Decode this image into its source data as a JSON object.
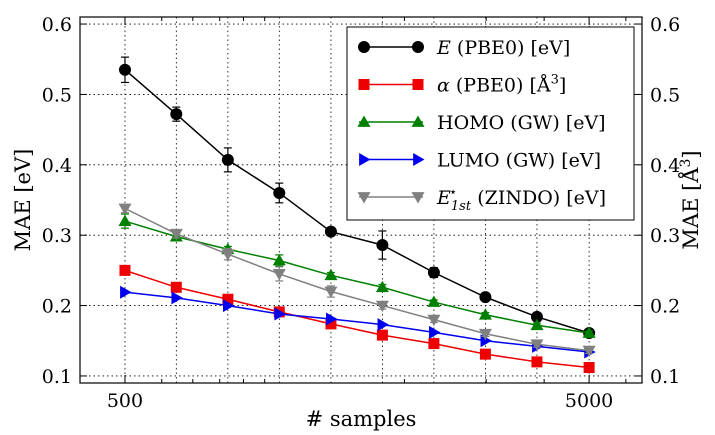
{
  "chart_data": {
    "type": "line",
    "xlabel": "# samples",
    "ylabel_left": "MAE [eV]",
    "ylabel_right": "MAE [Å³]",
    "x_scale": "log",
    "xlim": [
      400,
      6500
    ],
    "ylim": [
      0.09,
      0.61
    ],
    "x_ticks": [
      500,
      5000
    ],
    "x_tick_labels": [
      "500",
      "5000"
    ],
    "y_ticks": [
      0.1,
      0.2,
      0.3,
      0.4,
      0.5,
      0.6
    ],
    "y_tick_labels": [
      "0.1",
      "0.2",
      "0.3",
      "0.4",
      "0.5",
      "0.6"
    ],
    "grid": true,
    "legend_position": "top-right",
    "x": [
      500,
      645,
      833,
      1075,
      1389,
      1793,
      2315,
      2989,
      3860,
      5000
    ],
    "series": [
      {
        "name": "E (PBE0) [eV]",
        "legend": {
          "main": "E",
          "rest": " (PBE0) [eV]"
        },
        "color": "#000000",
        "marker": "circle",
        "values": [
          0.535,
          0.472,
          0.407,
          0.36,
          0.305,
          0.286,
          0.247,
          0.212,
          0.184,
          0.161
        ],
        "errors": [
          0.018,
          0.01,
          0.017,
          0.014,
          0.004,
          0.02,
          0.007,
          0.004,
          0.005,
          0.005
        ]
      },
      {
        "name": "α (PBE0) [Å³]",
        "legend": {
          "main": "α",
          "rest": " (PBE0) [Å",
          "sup": "3",
          "tail": "]"
        },
        "color": "#ee0000",
        "marker": "square",
        "values": [
          0.25,
          0.226,
          0.209,
          0.191,
          0.174,
          0.158,
          0.146,
          0.131,
          0.12,
          0.112
        ],
        "errors": [
          0,
          0,
          0,
          0,
          0,
          0,
          0,
          0,
          0,
          0
        ]
      },
      {
        "name": "HOMO (GW) [eV]",
        "legend": {
          "main": "HOMO (GW) [eV]"
        },
        "color": "#008000",
        "marker": "triangle-up",
        "values": [
          0.32,
          0.298,
          0.28,
          0.264,
          0.243,
          0.226,
          0.205,
          0.187,
          0.172,
          0.161
        ],
        "errors": [
          0.01,
          0.005,
          0.004,
          0.008,
          0.004,
          0.004,
          0.003,
          0.003,
          0.003,
          0.003
        ]
      },
      {
        "name": "LUMO (GW) [eV]",
        "legend": {
          "main": "LUMO (GW) [eV]"
        },
        "color": "#0000ee",
        "marker": "triangle-right",
        "values": [
          0.219,
          0.211,
          0.2,
          0.188,
          0.181,
          0.173,
          0.162,
          0.15,
          0.142,
          0.134
        ],
        "errors": [
          0,
          0,
          0,
          0,
          0,
          0,
          0,
          0,
          0,
          0
        ]
      },
      {
        "name": "E1st* (ZINDO) [eV]",
        "legend": {
          "main": "E",
          "sub": "1st",
          "sup": "⋆",
          "rest": " (ZINDO) [eV]"
        },
        "color": "#808080",
        "marker": "triangle-down",
        "values": [
          0.338,
          0.302,
          0.273,
          0.245,
          0.22,
          0.2,
          0.18,
          0.16,
          0.145,
          0.136
        ],
        "errors": [
          0.006,
          0.006,
          0.008,
          0.01,
          0.008,
          0.005,
          0.004,
          0.004,
          0.004,
          0.004
        ]
      }
    ]
  }
}
